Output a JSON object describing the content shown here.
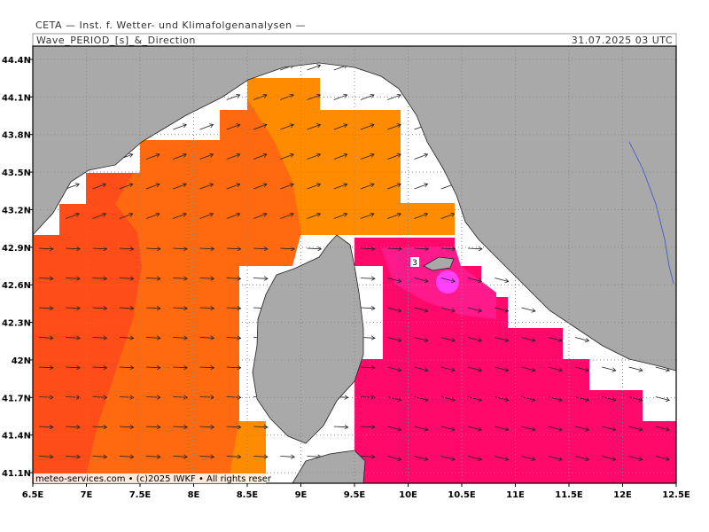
{
  "header": {
    "title": "CETA — Inst. f. Wetter- und Klimafolgenanalysen —",
    "left": "Wave_PERIOD_[s]_&_Direction",
    "right": "31.07.2025 03 UTC"
  },
  "axes": {
    "lon_labels": [
      "6.5E",
      "7E",
      "7.5E",
      "8E",
      "8.5E",
      "9E",
      "9.5E",
      "10E",
      "10.5E",
      "11E",
      "11.5E",
      "12E",
      "12.5E"
    ],
    "lat_labels": [
      "44.4N",
      "44.1N",
      "43.8N",
      "43.5N",
      "43.2N",
      "42.9N",
      "42.6N",
      "42.3N",
      "42N",
      "41.7N",
      "41.4N",
      "41.1N"
    ]
  },
  "annotations": {
    "contour_label": "3"
  },
  "footer": {
    "credit": "meteo-services.com • (c)2025 IWKF • All rights reser"
  }
}
